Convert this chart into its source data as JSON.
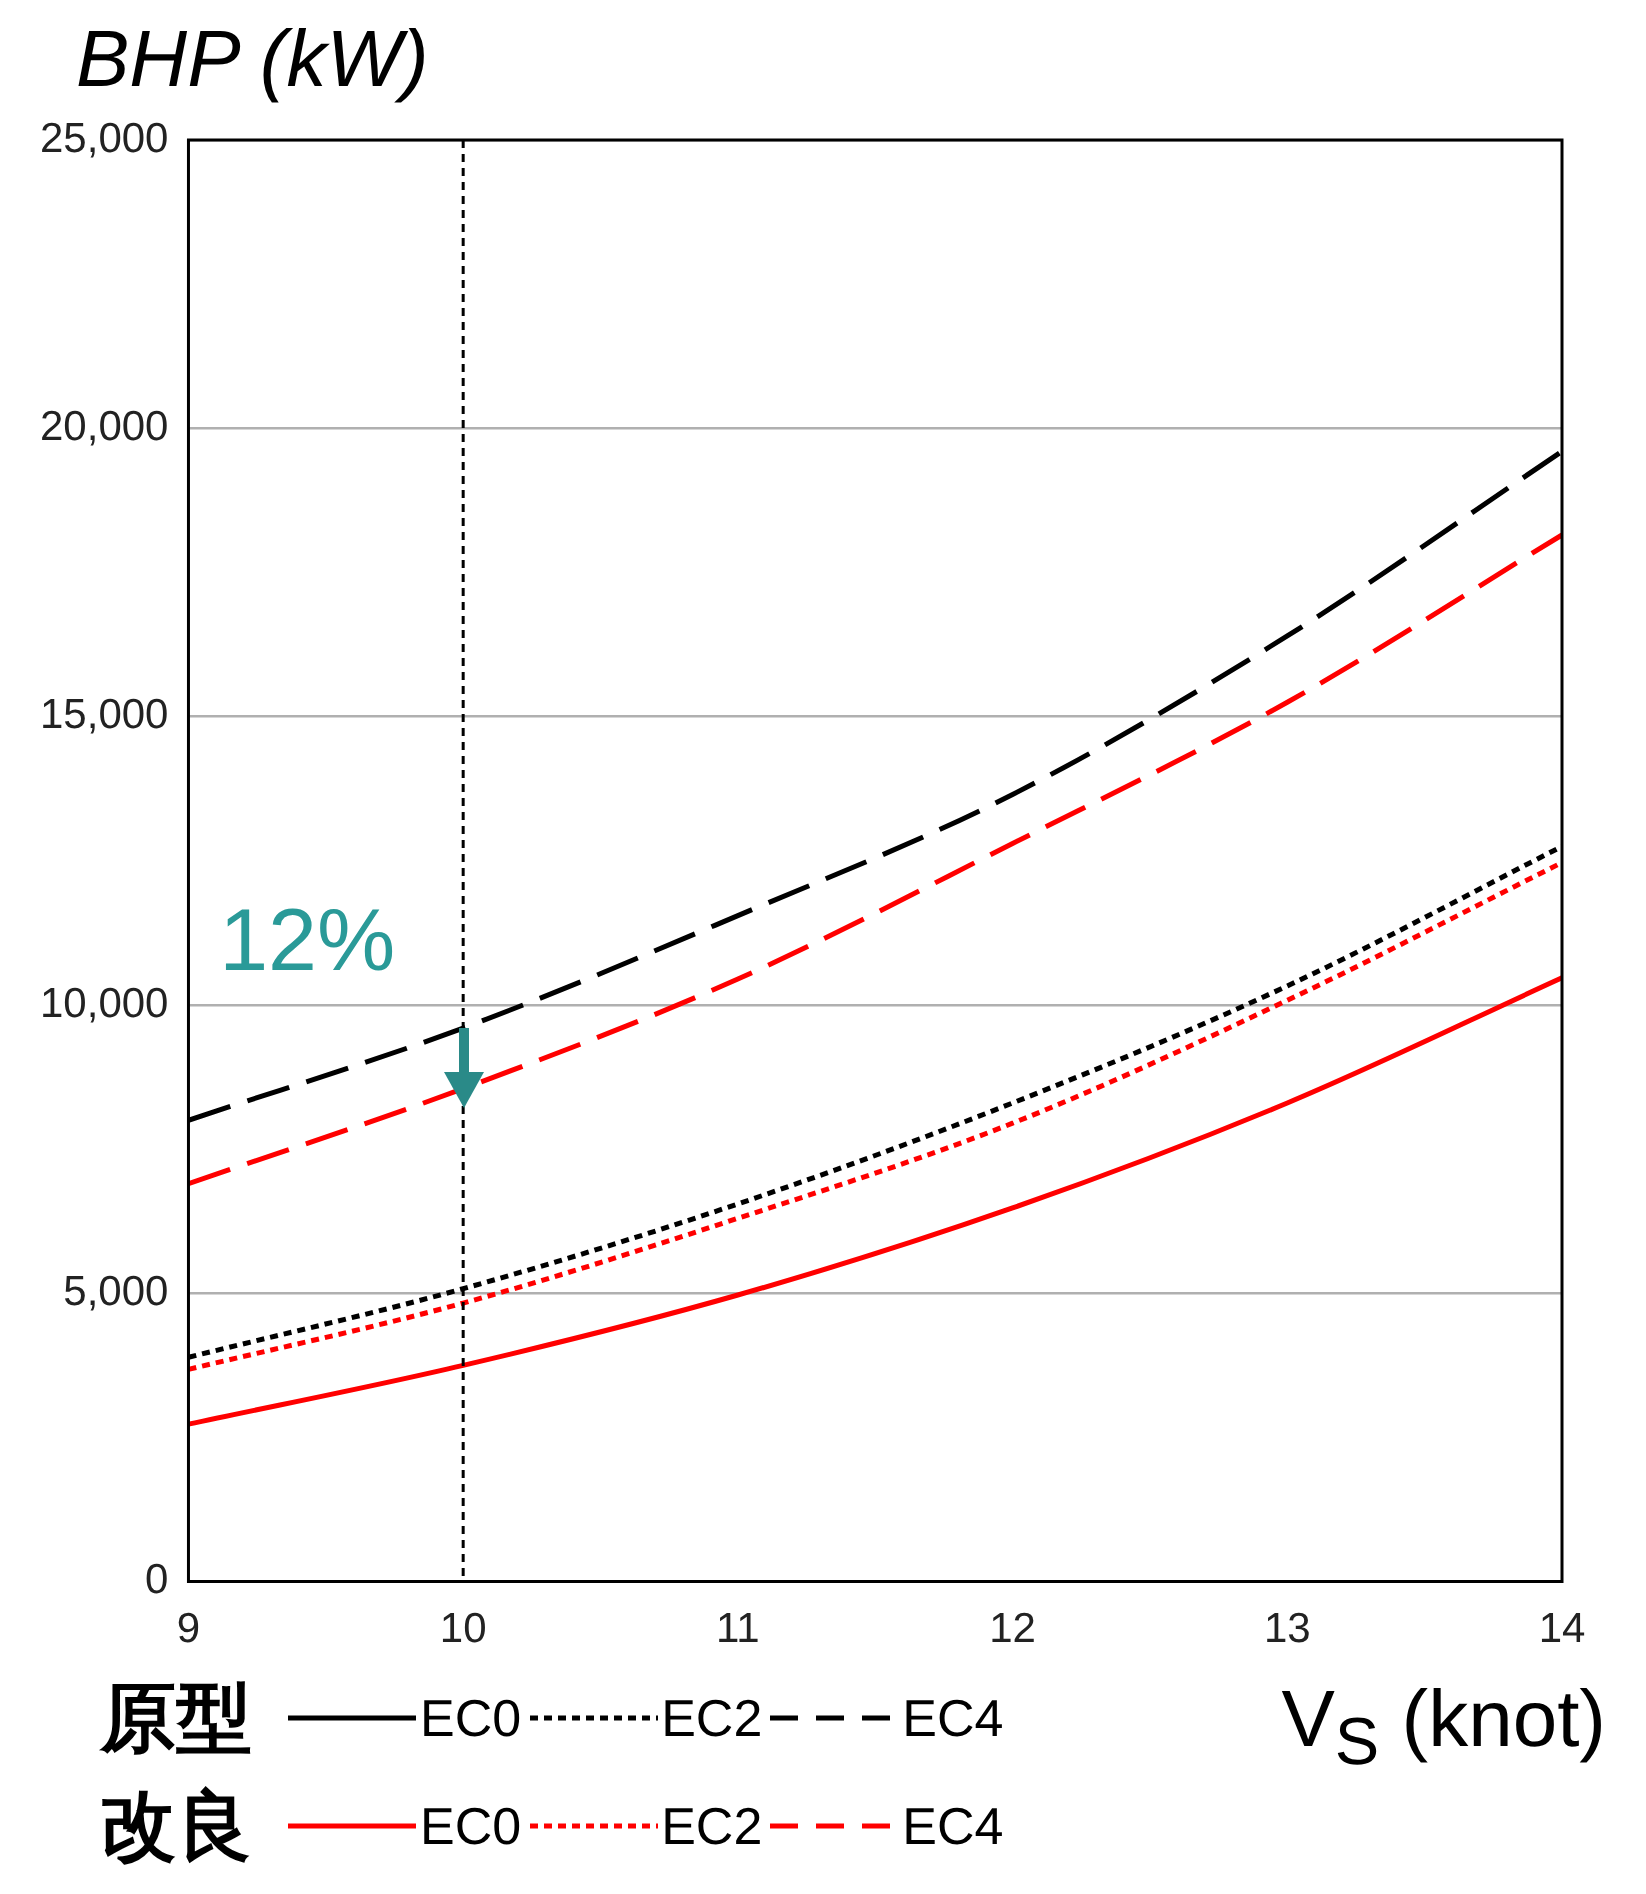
{
  "chart_data": {
    "type": "line",
    "ylabel": "BHP (kW)",
    "xlabel": "V$_{S}$ (knot)",
    "x": [
      9,
      10,
      11,
      12,
      13,
      14
    ],
    "series": [
      {
        "name": "EC0",
        "color": "#000000",
        "line_style": "solid",
        "values": [
          null,
          null,
          null,
          null,
          null,
          null
        ]
      },
      {
        "name": "EC2",
        "color": "#000000",
        "line_style": "dotted",
        "values": [
          3890,
          5080,
          6550,
          8300,
          10330,
          12750
        ]
      },
      {
        "name": "EC4",
        "color": "#000000",
        "line_style": "dashed",
        "values": [
          8000,
          9600,
          11550,
          13650,
          16400,
          19600
        ]
      },
      {
        "name": "EC0",
        "color": "#ff0000",
        "line_style": "solid",
        "values": [
          2730,
          3750,
          4970,
          6480,
          8300,
          10470
        ]
      },
      {
        "name": "EC2",
        "color": "#ff0000",
        "line_style": "dotted",
        "values": [
          3680,
          4830,
          6300,
          7950,
          10080,
          12470
        ]
      },
      {
        "name": "EC4",
        "color": "#ff0000",
        "line_style": "dashed",
        "values": [
          6900,
          8550,
          10450,
          12800,
          15250,
          18150
        ]
      }
    ],
    "xlim": [
      9,
      14
    ],
    "xticks": [
      9,
      10,
      11,
      12,
      13,
      14
    ],
    "ylim": [
      0,
      25000
    ],
    "yticks": [
      0,
      {
        "value": 5000,
        "label": "5,000"
      },
      {
        "value": 10000,
        "label": "10,000"
      },
      {
        "value": 15000,
        "label": "15,000"
      },
      {
        "value": 20000,
        "label": "20,000"
      },
      {
        "value": 25000,
        "label": "25,000"
      }
    ],
    "grid": "y",
    "marker": "none",
    "legend": "bottom",
    "ref_lines": [
      {
        "axis": "x",
        "value": 10,
        "color": "#000000",
        "line_style": "dotted"
      }
    ],
    "annotations": [
      {
        "text": "12%",
        "x": 10,
        "y": 9600
      },
      "原型",
      "改良"
    ]
  }
}
